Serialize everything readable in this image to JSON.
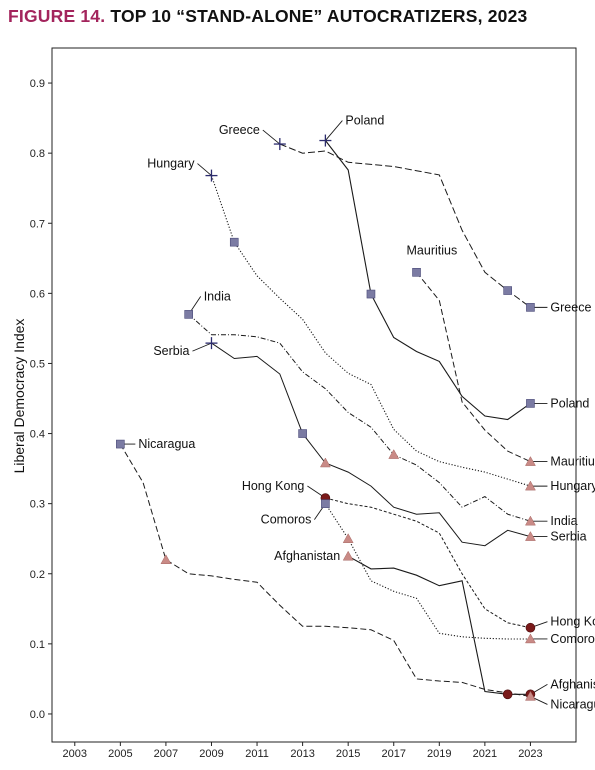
{
  "figure": {
    "number": "FIGURE 14.",
    "title": "TOP 10 “STAND-ALONE” AUTOCRATIZERS, 2023"
  },
  "chart_data": {
    "type": "line",
    "ylabel": "Liberal Democracy Index",
    "xlabel": "",
    "xlim": [
      2002,
      2025
    ],
    "ylim": [
      -0.04,
      0.95
    ],
    "x_ticks": [
      "2003",
      "2005",
      "2007",
      "2009",
      "2011",
      "2013",
      "2015",
      "2017",
      "2019",
      "2021",
      "2023"
    ],
    "y_ticks": [
      "0.0",
      "0.1",
      "0.2",
      "0.3",
      "0.4",
      "0.5",
      "0.6",
      "0.7",
      "0.8",
      "0.9"
    ],
    "grid": false,
    "legend": "none",
    "marker_legend_colors": {
      "plus": "#2c2c6e",
      "square": "#7b7ba3",
      "triangle": "#c98a86",
      "circle": "#7a1a1a"
    },
    "series": [
      {
        "name": "Greece",
        "dash": "long",
        "x": [
          2012,
          2013,
          2014,
          2015,
          2016,
          2017,
          2018,
          2019,
          2020,
          2021,
          2022,
          2023
        ],
        "y": [
          0.813,
          0.8,
          0.803,
          0.787,
          0.784,
          0.781,
          0.775,
          0.769,
          0.69,
          0.63,
          0.604,
          0.58
        ],
        "markers": [
          {
            "x": 2012,
            "y": 0.813,
            "shape": "plus",
            "label": "Greece"
          },
          {
            "x": 2022,
            "y": 0.604,
            "shape": "square"
          },
          {
            "x": 2023,
            "y": 0.58,
            "shape": "square",
            "label": "Greece"
          }
        ]
      },
      {
        "name": "Poland",
        "dash": "solid",
        "x": [
          2014,
          2015,
          2016,
          2017,
          2018,
          2019,
          2020,
          2021,
          2022,
          2023
        ],
        "y": [
          0.818,
          0.776,
          0.599,
          0.537,
          0.517,
          0.503,
          0.453,
          0.425,
          0.42,
          0.443
        ],
        "markers": [
          {
            "x": 2014,
            "y": 0.818,
            "shape": "plus",
            "label": "Poland"
          },
          {
            "x": 2016,
            "y": 0.599,
            "shape": "square"
          },
          {
            "x": 2023,
            "y": 0.443,
            "shape": "square",
            "label": "Poland"
          }
        ]
      },
      {
        "name": "Mauritius",
        "dash": "longdash",
        "x": [
          2018,
          2019,
          2020,
          2021,
          2022,
          2023
        ],
        "y": [
          0.63,
          0.59,
          0.445,
          0.405,
          0.375,
          0.36
        ],
        "markers": [
          {
            "x": 2018,
            "y": 0.63,
            "shape": "square",
            "label": "Mauritius"
          },
          {
            "x": 2023,
            "y": 0.36,
            "shape": "triangle",
            "label": "Mauritius"
          }
        ]
      },
      {
        "name": "Hungary",
        "dash": "dotted",
        "x": [
          2009,
          2010,
          2011,
          2012,
          2013,
          2014,
          2015,
          2016,
          2017,
          2018,
          2019,
          2020,
          2021,
          2022,
          2023
        ],
        "y": [
          0.768,
          0.673,
          0.625,
          0.593,
          0.563,
          0.515,
          0.486,
          0.47,
          0.406,
          0.375,
          0.36,
          0.352,
          0.345,
          0.335,
          0.325
        ],
        "markers": [
          {
            "x": 2009,
            "y": 0.768,
            "shape": "plus",
            "label": "Hungary"
          },
          {
            "x": 2010,
            "y": 0.673,
            "shape": "square"
          },
          {
            "x": 2023,
            "y": 0.325,
            "shape": "triangle",
            "label": "Hungary"
          }
        ]
      },
      {
        "name": "India",
        "dash": "dashdot",
        "x": [
          2008,
          2009,
          2010,
          2011,
          2012,
          2013,
          2014,
          2015,
          2016,
          2017,
          2018,
          2019,
          2020,
          2021,
          2022,
          2023
        ],
        "y": [
          0.57,
          0.541,
          0.541,
          0.538,
          0.529,
          0.488,
          0.464,
          0.43,
          0.409,
          0.37,
          0.355,
          0.33,
          0.295,
          0.31,
          0.285,
          0.275
        ],
        "markers": [
          {
            "x": 2008,
            "y": 0.57,
            "shape": "square",
            "label": "India"
          },
          {
            "x": 2017,
            "y": 0.37,
            "shape": "triangle"
          },
          {
            "x": 2023,
            "y": 0.275,
            "shape": "triangle",
            "label": "India"
          }
        ]
      },
      {
        "name": "Serbia",
        "dash": "solidthin",
        "x": [
          2009,
          2010,
          2011,
          2012,
          2013,
          2014,
          2015,
          2016,
          2017,
          2018,
          2019,
          2020,
          2021,
          2022,
          2023
        ],
        "y": [
          0.529,
          0.507,
          0.51,
          0.485,
          0.4,
          0.358,
          0.345,
          0.325,
          0.295,
          0.285,
          0.287,
          0.245,
          0.24,
          0.262,
          0.253
        ],
        "markers": [
          {
            "x": 2009,
            "y": 0.529,
            "shape": "plus",
            "label": "Serbia"
          },
          {
            "x": 2013,
            "y": 0.4,
            "shape": "square"
          },
          {
            "x": 2014,
            "y": 0.358,
            "shape": "triangle"
          },
          {
            "x": 2023,
            "y": 0.253,
            "shape": "triangle",
            "label": "Serbia"
          }
        ]
      },
      {
        "name": "Hong Kong",
        "dash": "shortdash",
        "x": [
          2014,
          2015,
          2016,
          2017,
          2018,
          2019,
          2020,
          2021,
          2022,
          2023
        ],
        "y": [
          0.308,
          0.3,
          0.295,
          0.285,
          0.275,
          0.258,
          0.2,
          0.15,
          0.13,
          0.123
        ],
        "markers": [
          {
            "x": 2014,
            "y": 0.308,
            "shape": "circle",
            "label": "Hong Kong"
          },
          {
            "x": 2023,
            "y": 0.123,
            "shape": "circle",
            "label": "Hong Kong"
          }
        ]
      },
      {
        "name": "Comoros",
        "dash": "dotted",
        "x": [
          2014,
          2015,
          2016,
          2017,
          2018,
          2019,
          2020,
          2021,
          2022,
          2023
        ],
        "y": [
          0.3,
          0.25,
          0.19,
          0.175,
          0.165,
          0.115,
          0.11,
          0.108,
          0.107,
          0.107
        ],
        "markers": [
          {
            "x": 2014,
            "y": 0.3,
            "shape": "square",
            "label": "Comoros"
          },
          {
            "x": 2015,
            "y": 0.25,
            "shape": "triangle"
          },
          {
            "x": 2023,
            "y": 0.107,
            "shape": "triangle",
            "label": "Comoros"
          }
        ]
      },
      {
        "name": "Afghanistan",
        "dash": "solid",
        "x": [
          2015,
          2016,
          2017,
          2018,
          2019,
          2020,
          2021,
          2022,
          2023
        ],
        "y": [
          0.225,
          0.207,
          0.208,
          0.198,
          0.183,
          0.19,
          0.032,
          0.028,
          0.028
        ],
        "markers": [
          {
            "x": 2015,
            "y": 0.225,
            "shape": "triangle",
            "label": "Afghanistan"
          },
          {
            "x": 2022,
            "y": 0.028,
            "shape": "circle"
          },
          {
            "x": 2023,
            "y": 0.028,
            "shape": "circle",
            "label": "Afghanistan"
          }
        ]
      },
      {
        "name": "Nicaragua",
        "dash": "longdash",
        "x": [
          2005,
          2006,
          2007,
          2008,
          2009,
          2010,
          2011,
          2012,
          2013,
          2014,
          2015,
          2016,
          2017,
          2018,
          2019,
          2020,
          2021,
          2022,
          2023
        ],
        "y": [
          0.385,
          0.33,
          0.22,
          0.2,
          0.197,
          0.192,
          0.188,
          0.155,
          0.125,
          0.125,
          0.123,
          0.12,
          0.105,
          0.05,
          0.047,
          0.045,
          0.035,
          0.03,
          0.025
        ],
        "markers": [
          {
            "x": 2005,
            "y": 0.385,
            "shape": "square",
            "label": "Nicaragua"
          },
          {
            "x": 2007,
            "y": 0.22,
            "shape": "triangle"
          },
          {
            "x": 2023,
            "y": 0.025,
            "shape": "triangle",
            "label": "Nicaragua"
          }
        ]
      }
    ]
  }
}
